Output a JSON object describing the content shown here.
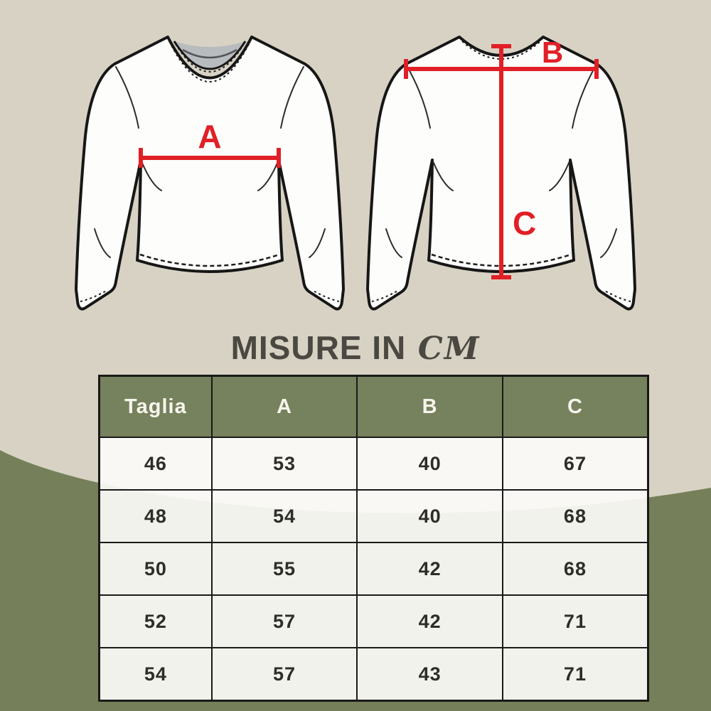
{
  "page": {
    "title_main": "MISURE IN",
    "title_unit": "CM"
  },
  "colors": {
    "beige": "#d8d2c4",
    "green": "#75805a",
    "header_green": "#76815d",
    "red": "#e11f26",
    "ink": "#2e2d28",
    "title_ink": "#4a4841",
    "neck_gray": "#b9bcbe",
    "cell": "rgba(252,251,247,0.93)"
  },
  "diagram": {
    "front_view_measure_label": "A",
    "back_width_measure_label": "B",
    "back_length_measure_label": "C"
  },
  "size_table": {
    "columns": [
      "Taglia",
      "A",
      "B",
      "C"
    ],
    "rows": [
      [
        "46",
        "53",
        "40",
        "67"
      ],
      [
        "48",
        "54",
        "40",
        "68"
      ],
      [
        "50",
        "55",
        "42",
        "68"
      ],
      [
        "52",
        "57",
        "42",
        "71"
      ],
      [
        "54",
        "57",
        "43",
        "71"
      ]
    ]
  }
}
